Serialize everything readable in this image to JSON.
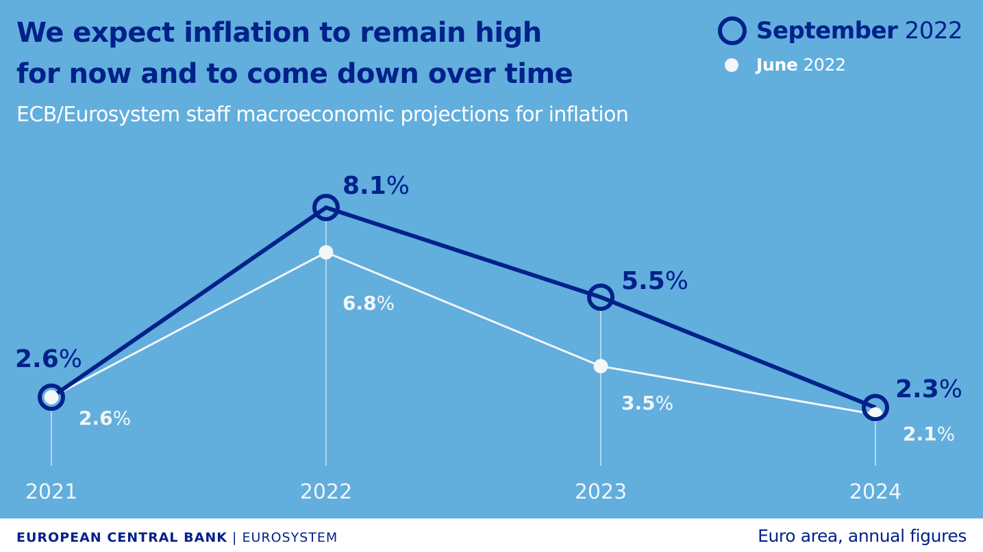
{
  "chart_data": {
    "type": "line",
    "title": "We expect inflation to remain high for now and to come down over time",
    "title_lines": [
      "We expect inflation to remain high",
      "for now and to come down over time"
    ],
    "subtitle": "ECB/Eurosystem staff macroeconomic projections for inflation",
    "xlabel": "",
    "ylabel": "",
    "x": [
      "2021",
      "2022",
      "2023",
      "2024"
    ],
    "series": [
      {
        "name": "September 2022",
        "name_bold": "September",
        "name_year": "2022",
        "marker": "ring",
        "color": "#00218a",
        "values": [
          2.6,
          8.1,
          5.5,
          2.3
        ],
        "labels": [
          "2.6",
          "8.1",
          "5.5",
          "2.3"
        ]
      },
      {
        "name": "June 2022",
        "name_bold": "June",
        "name_year": "2022",
        "marker": "dot",
        "color": "#f4f6f8",
        "values": [
          2.6,
          6.8,
          3.5,
          2.1
        ],
        "labels": [
          "2.6",
          "6.8",
          "3.5",
          "2.1"
        ]
      }
    ],
    "value_suffix": "%",
    "grid": false,
    "legend_position": "top-right",
    "colors": {
      "background": "#62aedd",
      "primary": "#00218a",
      "secondary": "#f4f6f8"
    }
  },
  "footer": {
    "org_bold": "EUROPEAN CENTRAL BANK",
    "separator": "|",
    "org_light": "EUROSYSTEM",
    "note": "Euro area, annual figures"
  }
}
